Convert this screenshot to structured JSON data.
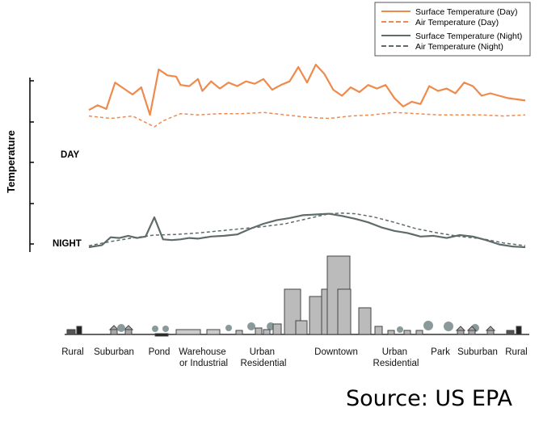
{
  "chart_data": {
    "type": "line",
    "ylabel": "Temperature",
    "y_markers": [
      "DAY",
      "NIGHT"
    ],
    "legend_position": "top-right",
    "legend": [
      {
        "name": "Surface Temperature (Day)",
        "color": "#ef8a4d",
        "dash": "solid"
      },
      {
        "name": "Air Temperature  (Day)",
        "color": "#ef8a4d",
        "dash": "dashed"
      },
      {
        "name": "Surface Temperature (Night)",
        "color": "#5f6b6b",
        "dash": "solid"
      },
      {
        "name": "Air Temperature (Night)",
        "color": "#5f6b6b",
        "dash": "dashed"
      }
    ],
    "series": [
      {
        "name": "Surface Temperature (Day)",
        "x": [
          0,
          2,
          4,
          6,
          8,
          10,
          12,
          14,
          16,
          18,
          20,
          21,
          23,
          25,
          26,
          28,
          30,
          32,
          34,
          36,
          38,
          40,
          42,
          44,
          46,
          48,
          50,
          52,
          54,
          56,
          58,
          60,
          62,
          64,
          66,
          68,
          70,
          72,
          74,
          76,
          78,
          80,
          82,
          84,
          86,
          88,
          90,
          92,
          94,
          96,
          98,
          100
        ],
        "values": [
          62,
          66,
          63,
          85,
          80,
          75,
          81,
          58,
          96,
          91,
          90,
          83,
          82,
          88,
          78,
          86,
          80,
          85,
          82,
          86,
          84,
          88,
          79,
          83,
          86,
          98,
          85,
          100,
          92,
          79,
          74,
          81,
          77,
          83,
          80,
          83,
          72,
          65,
          69,
          67,
          82,
          78,
          80,
          76,
          85,
          82,
          74,
          76,
          74,
          72,
          71,
          70
        ]
      },
      {
        "name": "Air Temperature  (Day)",
        "x": [
          0,
          5,
          10,
          15,
          17,
          19,
          21,
          25,
          30,
          35,
          40,
          45,
          50,
          55,
          60,
          65,
          70,
          75,
          80,
          85,
          90,
          95,
          100
        ],
        "values": [
          57,
          55,
          57,
          48,
          53,
          56,
          59,
          58,
          59,
          59,
          60,
          58,
          56,
          55,
          57,
          58,
          60,
          59,
          58,
          58,
          58,
          57,
          58
        ]
      },
      {
        "name": "Surface Temperature (Night)",
        "x": [
          0,
          3,
          5,
          7,
          9,
          11,
          13,
          15,
          17,
          19,
          21,
          23,
          25,
          28,
          31,
          34,
          37,
          40,
          43,
          46,
          49,
          52,
          55,
          58,
          61,
          64,
          67,
          70,
          73,
          76,
          79,
          82,
          85,
          88,
          91,
          94,
          97,
          100
        ],
        "values": [
          0,
          3,
          14,
          13,
          16,
          13,
          15,
          42,
          11,
          10,
          11,
          13,
          12,
          15,
          16,
          18,
          26,
          33,
          38,
          41,
          45,
          46,
          47,
          44,
          40,
          35,
          28,
          23,
          20,
          15,
          16,
          13,
          17,
          15,
          10,
          4,
          1,
          0
        ]
      },
      {
        "name": "Air Temperature (Night)",
        "x": [
          0,
          5,
          10,
          15,
          20,
          25,
          30,
          35,
          40,
          45,
          50,
          55,
          58,
          61,
          65,
          70,
          75,
          80,
          85,
          90,
          95,
          100
        ],
        "values": [
          2,
          8,
          13,
          17,
          18,
          20,
          23,
          26,
          29,
          33,
          40,
          47,
          48,
          47,
          43,
          35,
          26,
          20,
          15,
          12,
          6,
          2
        ]
      }
    ],
    "regions": [
      "Rural",
      "Suburban",
      "Pond",
      "Warehouse\nor Industrial",
      "Urban\nResidential",
      "Downtown",
      "Urban\nResidential",
      "Park",
      "Suburban",
      "Rural"
    ]
  },
  "source": "Source: US EPA"
}
